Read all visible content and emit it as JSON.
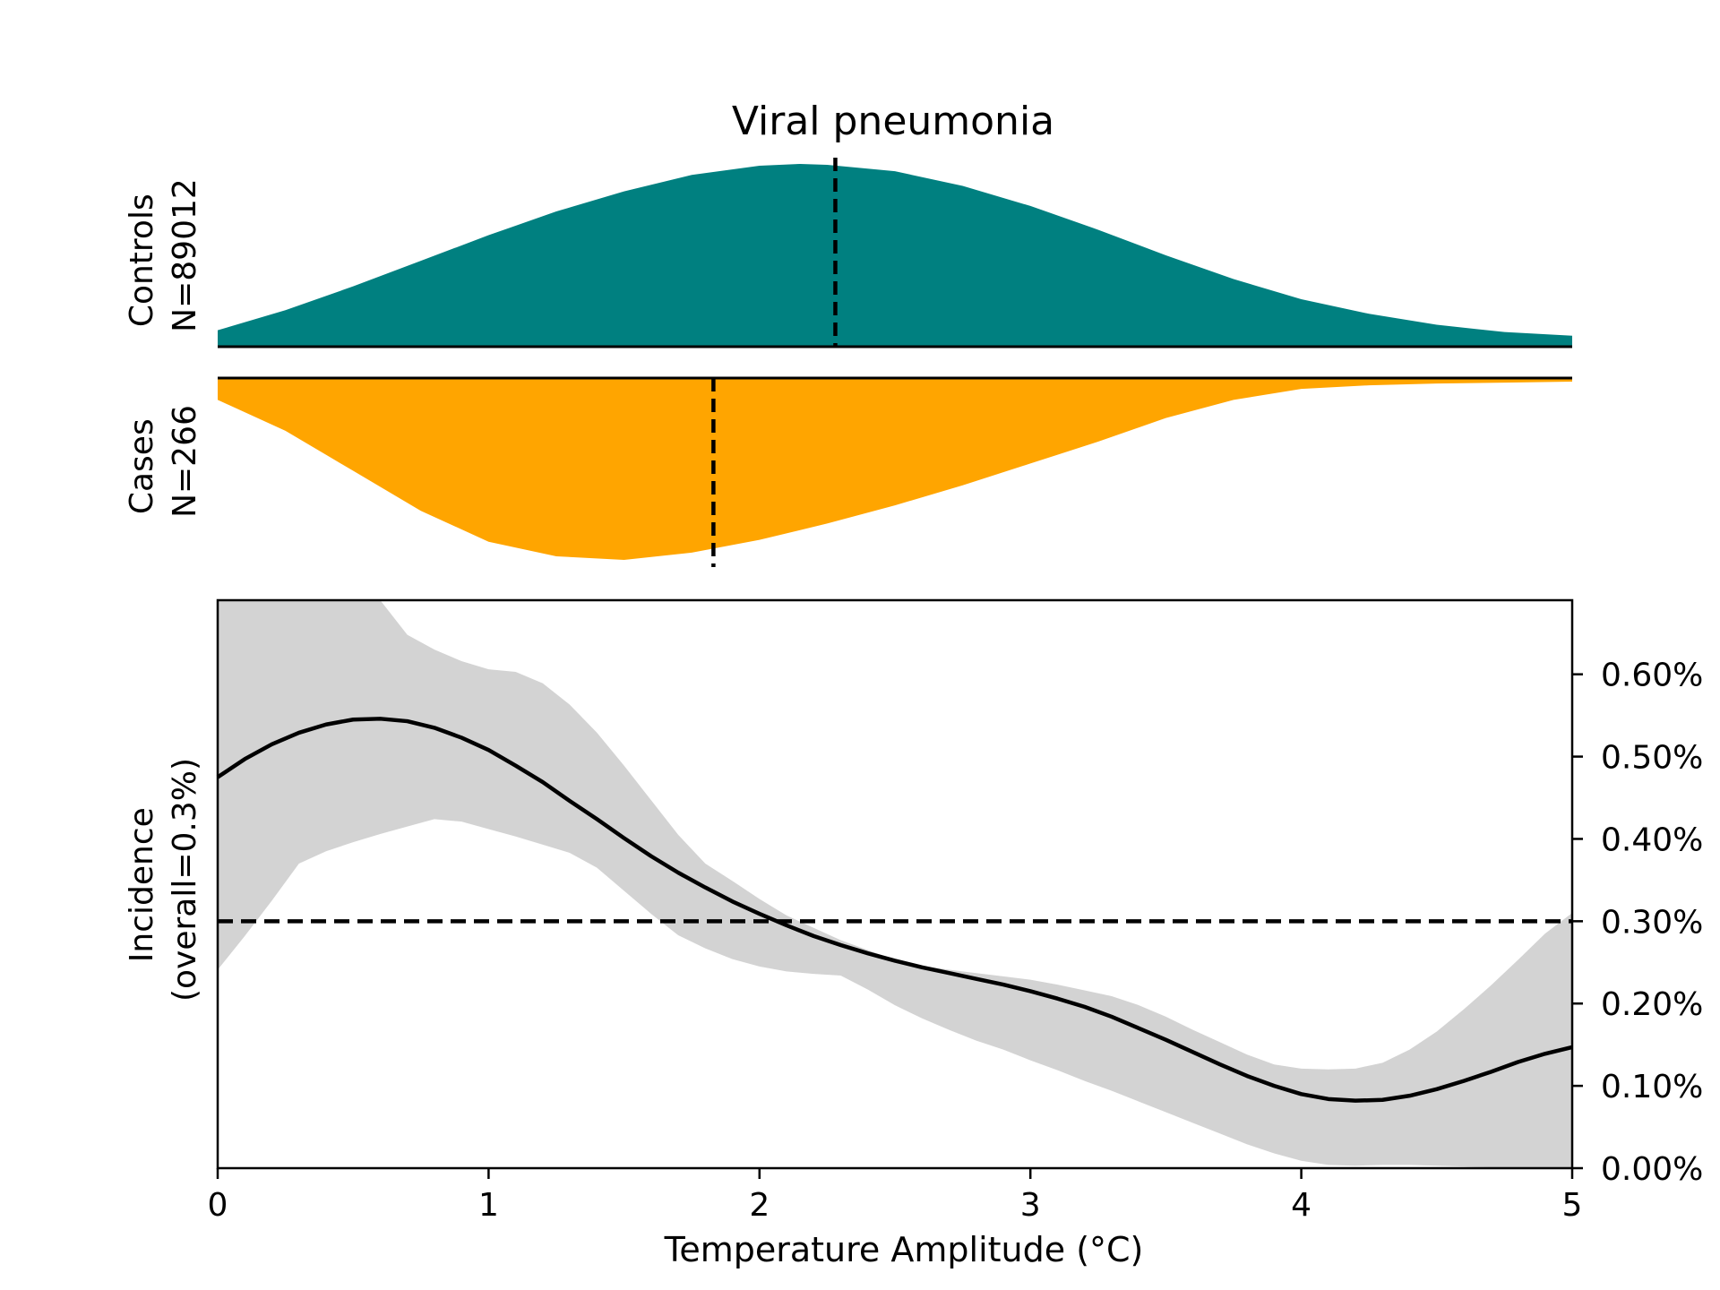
{
  "chart_data": {
    "type": "area",
    "title": "Viral pneumonia",
    "xlabel": "Temperature Amplitude (°C)",
    "xlim": [
      0,
      5
    ],
    "x_ticks": [
      "0",
      "1",
      "2",
      "3",
      "4",
      "5"
    ],
    "panels": {
      "controls": {
        "label_line1": "Controls",
        "label_line2": "N=89012",
        "color": "#008080",
        "median": 2.28,
        "density": {
          "x": [
            0,
            0.25,
            0.5,
            0.75,
            1,
            1.25,
            1.5,
            1.75,
            2,
            2.15,
            2.25,
            2.5,
            2.75,
            3,
            3.25,
            3.5,
            3.75,
            4,
            4.25,
            4.5,
            4.75,
            5
          ],
          "y": [
            0.09,
            0.2,
            0.33,
            0.47,
            0.61,
            0.74,
            0.85,
            0.94,
            0.99,
            1.0,
            0.995,
            0.96,
            0.88,
            0.77,
            0.64,
            0.5,
            0.37,
            0.26,
            0.18,
            0.12,
            0.08,
            0.06
          ]
        }
      },
      "cases": {
        "label_line1": "Cases",
        "label_line2": "N=266",
        "color": "#FFA500",
        "median": 1.83,
        "density": {
          "x": [
            0,
            0.25,
            0.5,
            0.75,
            1,
            1.25,
            1.5,
            1.75,
            2,
            2.25,
            2.5,
            2.75,
            3,
            3.25,
            3.5,
            3.75,
            4,
            4.25,
            4.5,
            4.75,
            5
          ],
          "y": [
            0.12,
            0.29,
            0.51,
            0.73,
            0.9,
            0.98,
            1.0,
            0.96,
            0.89,
            0.8,
            0.7,
            0.59,
            0.47,
            0.35,
            0.22,
            0.12,
            0.06,
            0.04,
            0.03,
            0.025,
            0.02
          ]
        }
      }
    },
    "incidence": {
      "ylabel_line1": "Incidence",
      "ylabel_line2": "(overall=0.3%)",
      "ylim": [
        0,
        0.0069
      ],
      "y_ticks": [
        0,
        0.001,
        0.002,
        0.003,
        0.004,
        0.005,
        0.006
      ],
      "y_tick_labels": [
        "0.00%",
        "0.10%",
        "0.20%",
        "0.30%",
        "0.40%",
        "0.50%",
        "0.60%"
      ],
      "overall_rate": 0.003,
      "line_color": "#000000",
      "band_color": "#d3d3d3",
      "x": [
        0,
        0.1,
        0.2,
        0.3,
        0.4,
        0.5,
        0.6,
        0.7,
        0.8,
        0.9,
        1.0,
        1.1,
        1.2,
        1.3,
        1.4,
        1.5,
        1.6,
        1.7,
        1.8,
        1.9,
        2.0,
        2.1,
        2.2,
        2.3,
        2.4,
        2.5,
        2.6,
        2.7,
        2.8,
        2.9,
        3.0,
        3.1,
        3.2,
        3.3,
        3.4,
        3.5,
        3.6,
        3.7,
        3.8,
        3.9,
        4.0,
        4.1,
        4.2,
        4.3,
        4.4,
        4.5,
        4.6,
        4.7,
        4.8,
        4.9,
        5.0
      ],
      "y": [
        0.00475,
        0.00497,
        0.00515,
        0.00529,
        0.00539,
        0.00545,
        0.00546,
        0.00543,
        0.00535,
        0.00523,
        0.00508,
        0.00489,
        0.00469,
        0.00446,
        0.00424,
        0.00401,
        0.00379,
        0.00359,
        0.00341,
        0.00324,
        0.00309,
        0.00295,
        0.00282,
        0.00271,
        0.00261,
        0.00252,
        0.00244,
        0.00237,
        0.0023,
        0.00223,
        0.00215,
        0.00206,
        0.00196,
        0.00184,
        0.0017,
        0.00156,
        0.00141,
        0.00126,
        0.00112,
        0.001,
        0.0009,
        0.00084,
        0.00082,
        0.00083,
        0.00088,
        0.00096,
        0.00106,
        0.00117,
        0.00129,
        0.00139,
        0.00147
      ],
      "lower": [
        0.00241,
        0.00282,
        0.00325,
        0.0037,
        0.00385,
        0.00396,
        0.00406,
        0.00415,
        0.00424,
        0.00421,
        0.00412,
        0.00403,
        0.00393,
        0.00383,
        0.00365,
        0.00337,
        0.00309,
        0.00283,
        0.00267,
        0.00254,
        0.00245,
        0.00239,
        0.00236,
        0.00234,
        0.00217,
        0.00198,
        0.00182,
        0.00168,
        0.00155,
        0.00144,
        0.00131,
        0.00119,
        0.00106,
        0.00094,
        0.00081,
        0.00068,
        0.00055,
        0.00042,
        0.00029,
        0.00018,
        9e-05,
        4e-05,
        3e-05,
        4e-05,
        4e-05,
        3e-05,
        2e-05,
        1e-05,
        1e-05,
        0.0,
        0.0
      ],
      "upper": [
        0.0069,
        0.0069,
        0.0069,
        0.0069,
        0.0069,
        0.0069,
        0.0069,
        0.00648,
        0.0063,
        0.00616,
        0.00606,
        0.00603,
        0.00589,
        0.00563,
        0.00529,
        0.00489,
        0.00447,
        0.00405,
        0.0037,
        0.00349,
        0.00327,
        0.00307,
        0.00292,
        0.00277,
        0.00265,
        0.00253,
        0.00246,
        0.00241,
        0.00237,
        0.00233,
        0.00229,
        0.00223,
        0.00216,
        0.00209,
        0.00198,
        0.00184,
        0.00168,
        0.00153,
        0.00138,
        0.00126,
        0.00121,
        0.0012,
        0.00121,
        0.00128,
        0.00144,
        0.00166,
        0.00193,
        0.00222,
        0.00253,
        0.00285,
        0.0031
      ]
    }
  }
}
